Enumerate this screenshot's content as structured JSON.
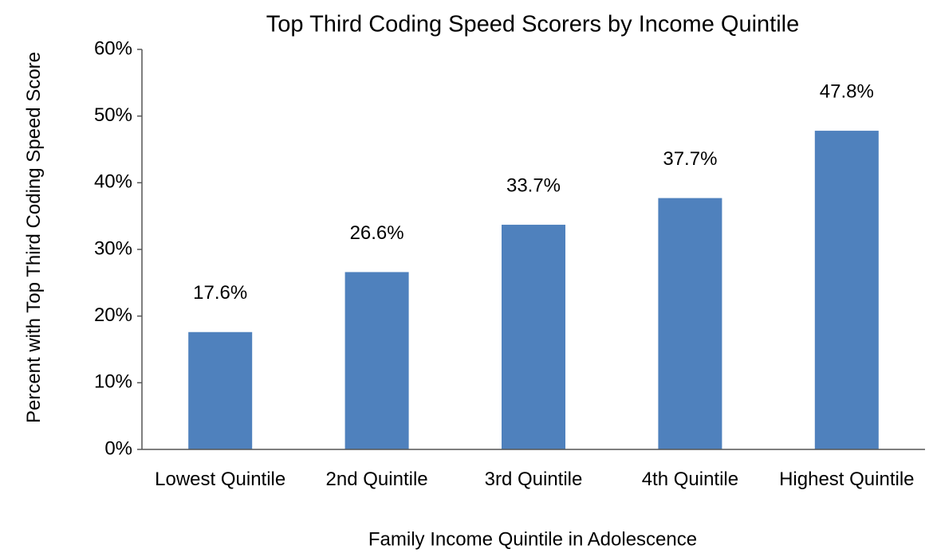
{
  "chart_data": {
    "type": "bar",
    "title": "Top Third Coding Speed Scorers by Income Quintile",
    "x_label": "Family Income Quintile in Adolescence",
    "y_label": "Percent with Top Third Coding Speed Score",
    "categories": [
      "Lowest Quintile",
      "2nd Quintile",
      "3rd Quintile",
      "4th Quintile",
      "Highest Quintile"
    ],
    "values": [
      17.6,
      26.6,
      33.7,
      37.7,
      47.8
    ],
    "value_labels": [
      "17.6%",
      "26.6%",
      "33.7%",
      "37.7%",
      "47.8%"
    ],
    "color": "#4f81bd",
    "ylim": [
      0,
      60
    ],
    "yticks": [
      {
        "value": 0,
        "label": "0%"
      },
      {
        "value": 10,
        "label": "10%"
      },
      {
        "value": 20,
        "label": "20%"
      },
      {
        "value": 30,
        "label": "30%"
      },
      {
        "value": 40,
        "label": "40%"
      },
      {
        "value": 50,
        "label": "50%"
      },
      {
        "value": 60,
        "label": "60%"
      }
    ],
    "grid": false
  }
}
